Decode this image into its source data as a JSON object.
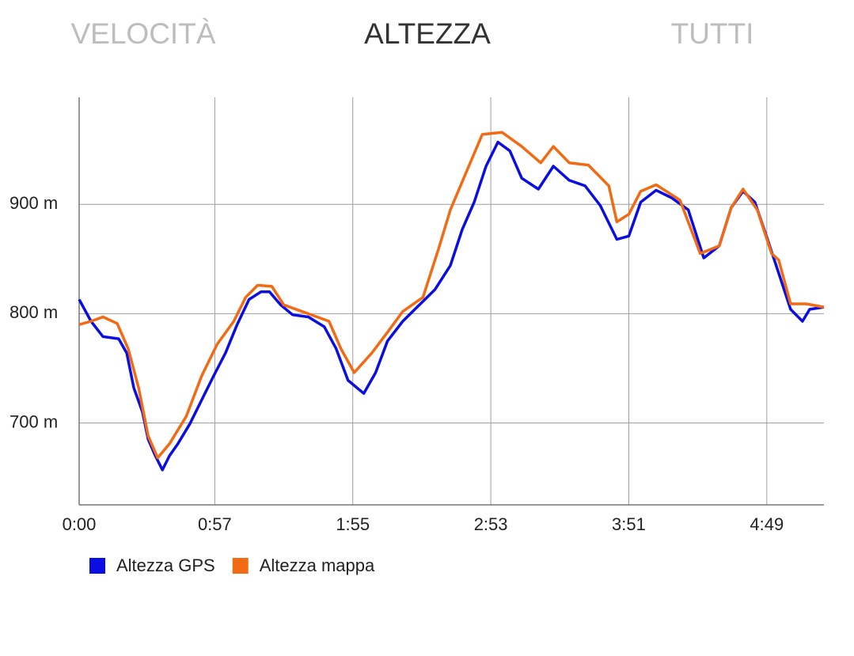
{
  "tabs": [
    "VELOCITÀ",
    "ALTEZZA",
    "TUTTI"
  ],
  "chart_data": {
    "type": "line",
    "xlim": [
      0,
      313
    ],
    "xticks": [
      {
        "value": 0,
        "label": "0:00"
      },
      {
        "value": 57,
        "label": "0:57"
      },
      {
        "value": 115,
        "label": "1:55"
      },
      {
        "value": 173,
        "label": "2:53"
      },
      {
        "value": 231,
        "label": "3:51"
      },
      {
        "value": 289,
        "label": "4:49"
      }
    ],
    "ylim": [
      625,
      998
    ],
    "yticks": [
      {
        "value": 700,
        "label": "700 m"
      },
      {
        "value": 800,
        "label": "800 m"
      },
      {
        "value": 900,
        "label": "900 m"
      }
    ],
    "grid": true,
    "series": [
      {
        "name": "Altezza GPS",
        "color": "#0b0ee0",
        "x": [
          0,
          5,
          10,
          16.6,
          20,
          23,
          26.6,
          29,
          32,
          35,
          38,
          41.5,
          46.5,
          51.5,
          56.5,
          61.5,
          66.4,
          71.4,
          76.4,
          80,
          84.7,
          89.7,
          96.3,
          103,
          108,
          113,
          119.6,
          124.6,
          129.6,
          136,
          143,
          149.5,
          156,
          161,
          166,
          171,
          176,
          181,
          186,
          193,
          199.3,
          206,
          212.6,
          219,
          226,
          231,
          236,
          242.5,
          249,
          256,
          262.5,
          269,
          274,
          279,
          284,
          289,
          294,
          299,
          304,
          307,
          313
        ],
        "values": [
          813,
          793,
          779,
          777,
          764,
          732,
          710,
          685,
          670,
          657,
          670,
          681,
          699,
          721,
          743,
          764,
          790,
          813,
          820,
          820,
          808,
          799,
          797,
          788,
          768,
          739,
          727,
          746,
          775,
          793,
          808,
          822,
          844,
          877,
          902,
          935,
          957,
          949,
          924,
          914,
          935,
          922,
          917,
          899,
          868,
          871,
          902,
          913,
          906,
          895,
          851,
          862,
          897,
          912,
          902,
          870,
          837,
          804,
          793,
          804,
          806
        ]
      },
      {
        "name": "Altezza mappa",
        "color": "#f26a14",
        "x": [
          0,
          5,
          10,
          16,
          20.6,
          25,
          29,
          33,
          38,
          45,
          51.5,
          58,
          65,
          70,
          75,
          81,
          86,
          95,
          105,
          110,
          115.6,
          123,
          129.6,
          136,
          144.5,
          151,
          156,
          163,
          169.4,
          177.7,
          186,
          194,
          199.3,
          206,
          214,
          222.6,
          226,
          231,
          236,
          242.5,
          252.5,
          261,
          269,
          274,
          279,
          285,
          291,
          294,
          299,
          305.6,
          313
        ],
        "values": [
          790,
          793,
          797,
          791,
          768,
          732,
          688,
          668,
          681,
          706,
          743,
          772,
          793,
          815,
          826,
          825,
          808,
          801,
          793,
          768,
          746,
          764,
          783,
          802,
          815,
          859,
          895,
          931,
          964,
          966,
          953,
          938,
          953,
          938,
          936,
          917,
          884,
          891,
          912,
          918,
          904,
          855,
          862,
          897,
          914,
          895,
          855,
          849,
          809,
          809,
          806
        ]
      }
    ]
  }
}
